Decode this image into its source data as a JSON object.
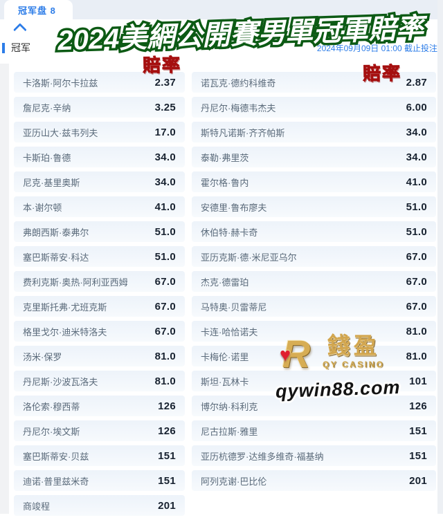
{
  "tabbar": {
    "tab_label": "冠军盘 8"
  },
  "title": "2024美網公開賽男單冠軍賠率",
  "section": {
    "name": "冠军",
    "deadline": "2024年09月09日 01:00 截止投注"
  },
  "odds_stamp": "賠率",
  "watermark": {
    "mark": "R",
    "heart": "♥",
    "brand": "錢盈",
    "sub": "QY CASINO",
    "site": "qywin88.com"
  },
  "colors": {
    "accent_blue": "#2d7de8",
    "title_green": "#0c5a14",
    "stamp_red": "#e62b2b",
    "gold": "#d7ad54",
    "row_bg": "#f0f5fa"
  },
  "columns": {
    "left": [
      {
        "name": "卡洛斯·阿尔卡拉兹",
        "odds": "2.37"
      },
      {
        "name": "詹尼克·辛纳",
        "odds": "3.25"
      },
      {
        "name": "亚历山大·兹韦列夫",
        "odds": "17.0"
      },
      {
        "name": "卡斯珀·鲁德",
        "odds": "34.0"
      },
      {
        "name": "尼克·基里奥斯",
        "odds": "34.0"
      },
      {
        "name": "本·谢尔顿",
        "odds": "41.0"
      },
      {
        "name": "弗朗西斯·泰弗尔",
        "odds": "51.0"
      },
      {
        "name": "塞巴斯蒂安·科达",
        "odds": "51.0"
      },
      {
        "name": "费利克斯·奥热·阿利亚西姆",
        "odds": "67.0"
      },
      {
        "name": "克里斯托弗·尤班克斯",
        "odds": "67.0"
      },
      {
        "name": "格里戈尔·迪米特洛夫",
        "odds": "67.0"
      },
      {
        "name": "汤米·保罗",
        "odds": "81.0"
      },
      {
        "name": "丹尼斯·沙波瓦洛夫",
        "odds": "81.0"
      },
      {
        "name": "洛伦索·穆西蒂",
        "odds": "126"
      },
      {
        "name": "丹尼尔·埃文斯",
        "odds": "126"
      },
      {
        "name": "塞巴斯蒂安·贝兹",
        "odds": "151"
      },
      {
        "name": "迪诺·普里兹米奇",
        "odds": "151"
      },
      {
        "name": "商竣程",
        "odds": "201"
      }
    ],
    "right": [
      {
        "name": "诺瓦克·德约科维奇",
        "odds": "2.87"
      },
      {
        "name": "丹尼尔·梅德韦杰夫",
        "odds": "6.00"
      },
      {
        "name": "斯特凡诺斯·齐齐帕斯",
        "odds": "34.0"
      },
      {
        "name": "泰勒·弗里茨",
        "odds": "34.0"
      },
      {
        "name": "霍尔格·鲁内",
        "odds": "41.0"
      },
      {
        "name": "安德里·鲁布廖夫",
        "odds": "51.0"
      },
      {
        "name": "休伯特·赫卡奇",
        "odds": "51.0"
      },
      {
        "name": "亚历克斯·德·米尼亚乌尔",
        "odds": "67.0"
      },
      {
        "name": "杰克·德雷珀",
        "odds": "67.0"
      },
      {
        "name": "马特奥·贝雷蒂尼",
        "odds": "67.0"
      },
      {
        "name": "卡连·哈恰诺夫",
        "odds": "81.0"
      },
      {
        "name": "卡梅伦·诺里",
        "odds": "81.0"
      },
      {
        "name": "斯坦·瓦林卡",
        "odds": "101"
      },
      {
        "name": "博尔纳·科利克",
        "odds": "126"
      },
      {
        "name": "尼古拉斯·雅里",
        "odds": "151"
      },
      {
        "name": "亚历杭德罗·达维多维奇·福基纳",
        "odds": "151"
      },
      {
        "name": "阿列克谢·巴比伦",
        "odds": "201"
      }
    ]
  }
}
